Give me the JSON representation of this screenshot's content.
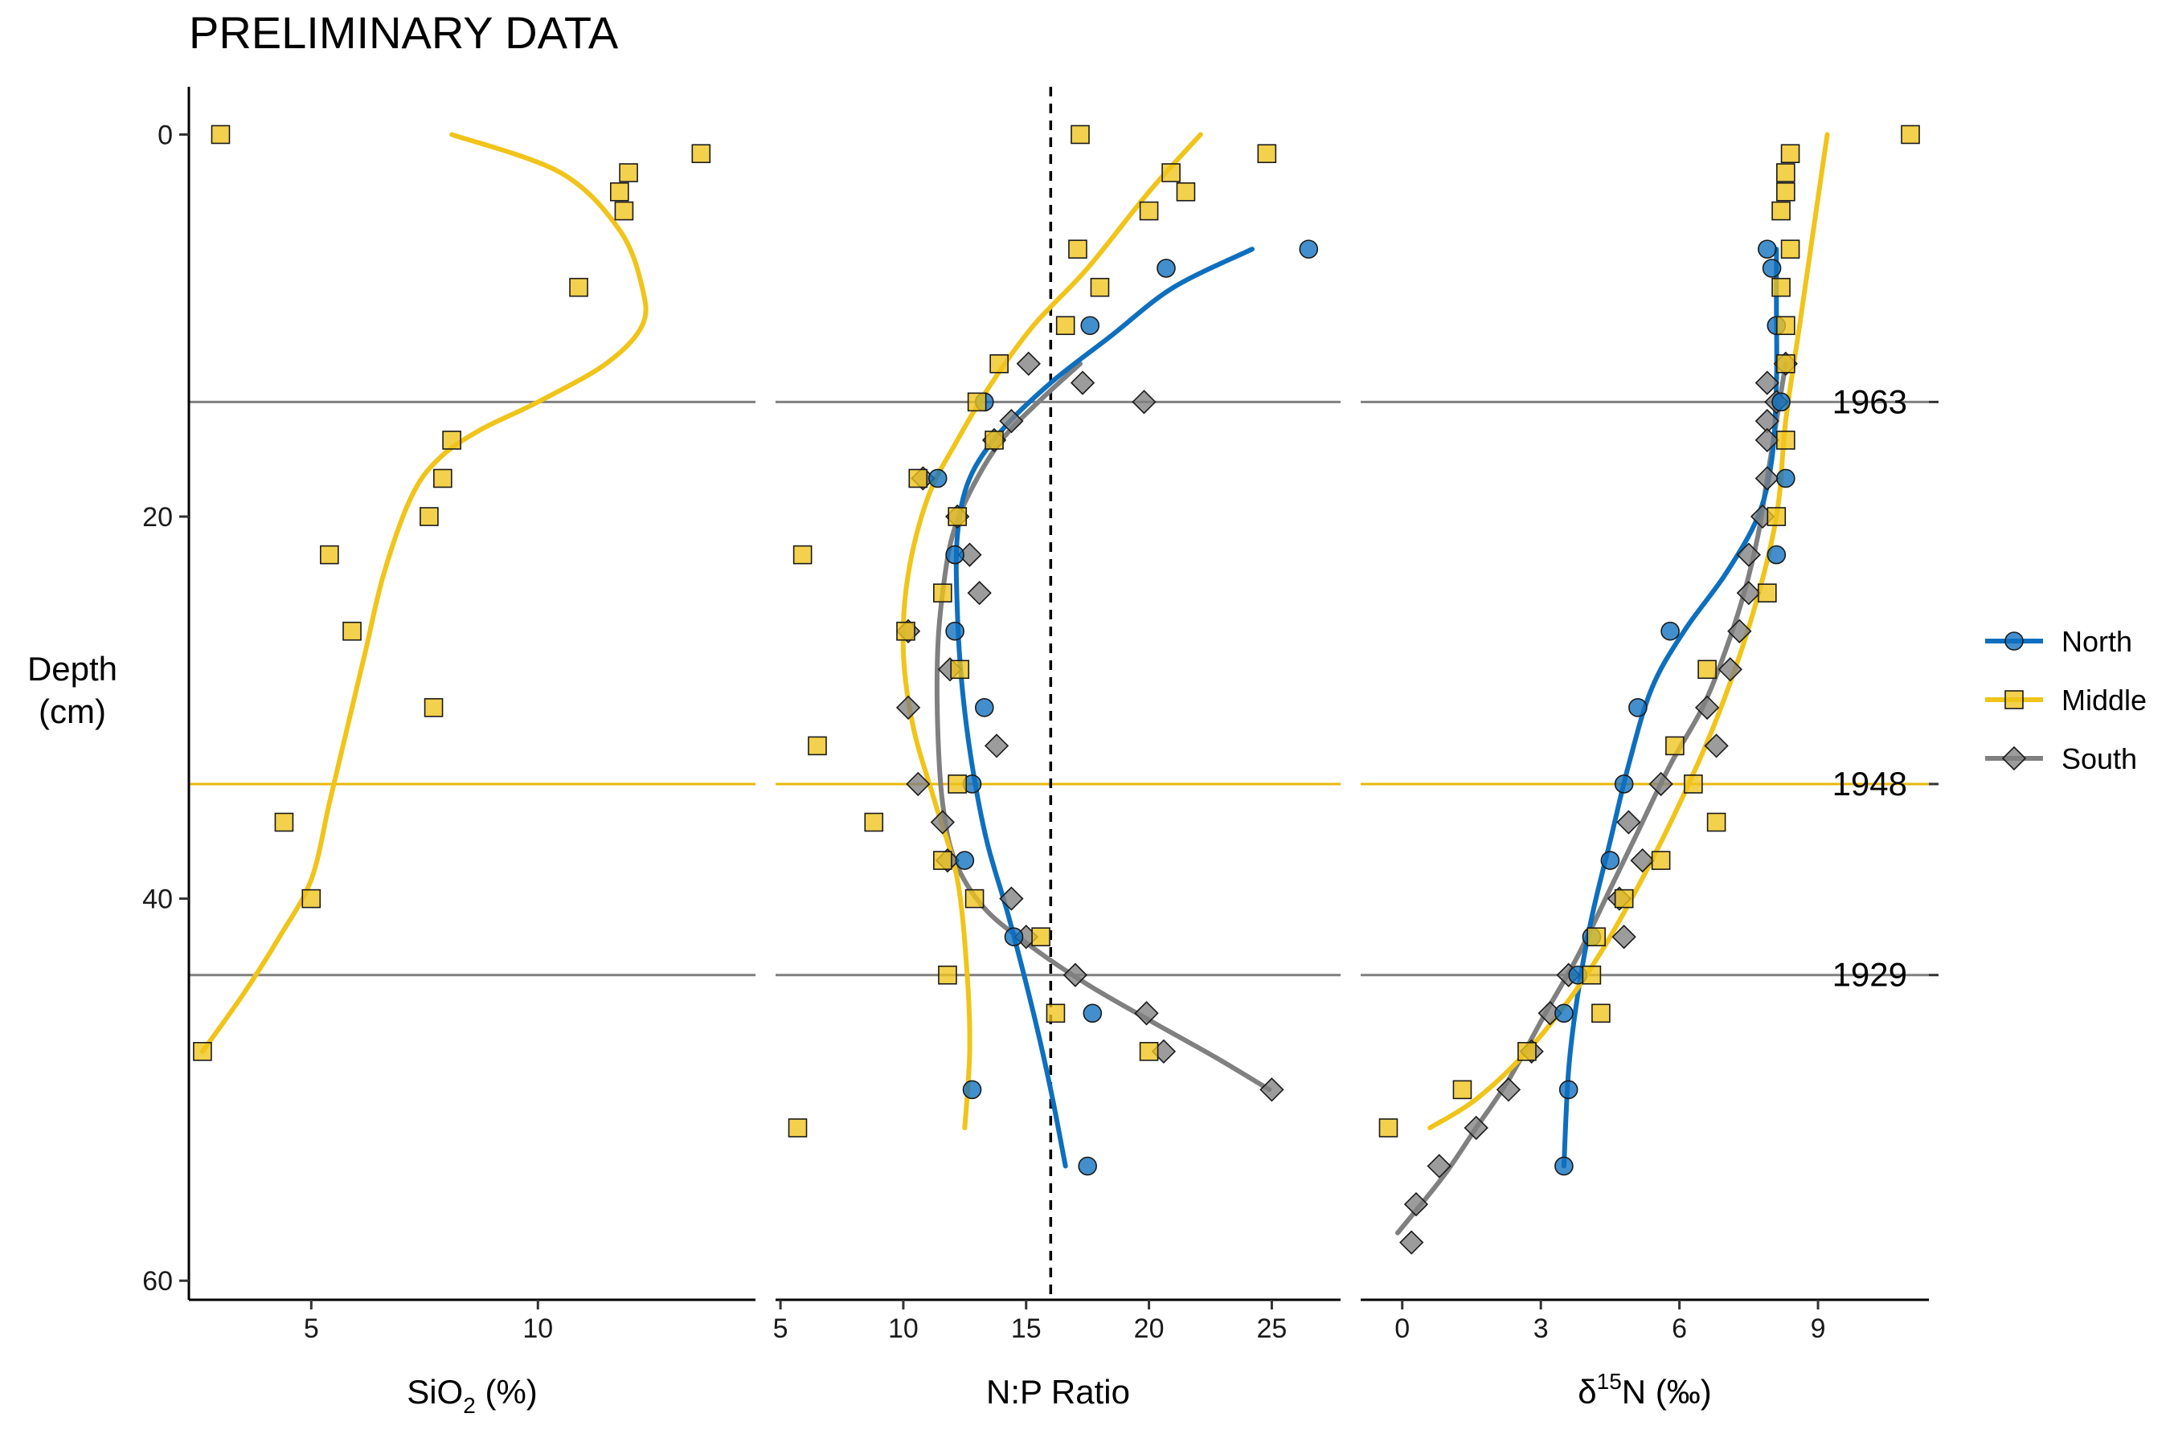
{
  "title": "PRELIMINARY DATA",
  "y_axis": {
    "label_line1": "Depth",
    "label_line2": "(cm)",
    "ticks": [
      0,
      20,
      40,
      60
    ],
    "range": [
      -2.5,
      61
    ]
  },
  "reference_lines": [
    {
      "depth": 14,
      "year": "1963",
      "color": "#808080"
    },
    {
      "depth": 34,
      "year": "1948",
      "color": "#E8B80A"
    },
    {
      "depth": 44,
      "year": "1929",
      "color": "#808080"
    }
  ],
  "legend": {
    "position": "right",
    "items": [
      {
        "name": "North",
        "color": "#0E6FBF",
        "shape": "circle"
      },
      {
        "name": "Middle",
        "color": "#F0C419",
        "shape": "square"
      },
      {
        "name": "South",
        "color": "#808080",
        "shape": "diamond"
      }
    ]
  },
  "chart_data": [
    {
      "type": "scatter",
      "panel": "SiO2",
      "xlabel_main": "SiO",
      "xlabel_sub": "2",
      "xlabel_tail": " (%)",
      "xlim": [
        2.3,
        14.8
      ],
      "xticks": [
        5,
        10
      ],
      "series": [
        {
          "name": "Middle",
          "points": [
            [
              3.0,
              0
            ],
            [
              13.6,
              1
            ],
            [
              12.0,
              2
            ],
            [
              11.8,
              3
            ],
            [
              11.9,
              4
            ],
            [
              10.9,
              8
            ],
            [
              8.1,
              16
            ],
            [
              7.9,
              18
            ],
            [
              7.6,
              20
            ],
            [
              5.4,
              22
            ],
            [
              5.9,
              26
            ],
            [
              7.7,
              30
            ],
            [
              4.4,
              36
            ],
            [
              5.0,
              40
            ],
            [
              2.6,
              48
            ]
          ],
          "smooth": [
            [
              8.1,
              0
            ],
            [
              10.5,
              2
            ],
            [
              11.8,
              5
            ],
            [
              12.3,
              8
            ],
            [
              12.3,
              10
            ],
            [
              11.5,
              12
            ],
            [
              10.0,
              14
            ],
            [
              8.7,
              15.5
            ],
            [
              7.8,
              17
            ],
            [
              7.2,
              19
            ],
            [
              6.6,
              23
            ],
            [
              6.2,
              27
            ],
            [
              5.8,
              31
            ],
            [
              5.4,
              35
            ],
            [
              5.0,
              39
            ],
            [
              4.3,
              42
            ],
            [
              3.5,
              45
            ],
            [
              2.6,
              48
            ]
          ]
        }
      ]
    },
    {
      "type": "scatter",
      "panel": "NP",
      "xlabel": "N:P Ratio",
      "xlim": [
        4.8,
        27.8
      ],
      "xticks": [
        5,
        10,
        15,
        20,
        25
      ],
      "reference_x": 16,
      "series": [
        {
          "name": "North",
          "points": [
            [
              26.5,
              6
            ],
            [
              20.7,
              7
            ],
            [
              17.6,
              10
            ],
            [
              13.3,
              14
            ],
            [
              11.4,
              18
            ],
            [
              12.1,
              22
            ],
            [
              12.1,
              26
            ],
            [
              13.3,
              30
            ],
            [
              12.8,
              34
            ],
            [
              12.5,
              38
            ],
            [
              14.5,
              42
            ],
            [
              17.7,
              46
            ],
            [
              12.8,
              50
            ],
            [
              17.5,
              54
            ]
          ],
          "smooth": [
            [
              24.2,
              6
            ],
            [
              21,
              8
            ],
            [
              18.5,
              10.5
            ],
            [
              16,
              13
            ],
            [
              14,
              15.5
            ],
            [
              12.7,
              18
            ],
            [
              12.2,
              21
            ],
            [
              12.2,
              25
            ],
            [
              12.4,
              29
            ],
            [
              12.8,
              33
            ],
            [
              13.4,
              37
            ],
            [
              14.3,
              41
            ],
            [
              15.3,
              46
            ],
            [
              16,
              50
            ],
            [
              16.6,
              54
            ]
          ]
        },
        {
          "name": "Middle",
          "points": [
            [
              17.2,
              0
            ],
            [
              24.8,
              1
            ],
            [
              20.9,
              2
            ],
            [
              21.5,
              3
            ],
            [
              20.0,
              4
            ],
            [
              17.1,
              6
            ],
            [
              18.0,
              8
            ],
            [
              16.6,
              10
            ],
            [
              13.9,
              12
            ],
            [
              13.0,
              14
            ],
            [
              13.7,
              16
            ],
            [
              10.6,
              18
            ],
            [
              12.2,
              20
            ],
            [
              5.9,
              22
            ],
            [
              11.6,
              24
            ],
            [
              10.1,
              26
            ],
            [
              12.3,
              28
            ],
            [
              6.5,
              32
            ],
            [
              12.2,
              34
            ],
            [
              8.8,
              36
            ],
            [
              11.6,
              38
            ],
            [
              12.9,
              40
            ],
            [
              15.6,
              42
            ],
            [
              11.8,
              44
            ],
            [
              16.2,
              46
            ],
            [
              20.0,
              48
            ],
            [
              5.7,
              52
            ]
          ],
          "smooth": [
            [
              22.1,
              0
            ],
            [
              20,
              3
            ],
            [
              17.5,
              7
            ],
            [
              15.3,
              10
            ],
            [
              13.6,
              13
            ],
            [
              12.2,
              16
            ],
            [
              11.0,
              19
            ],
            [
              10.2,
              23
            ],
            [
              10.0,
              27
            ],
            [
              10.4,
              31
            ],
            [
              11.3,
              35
            ],
            [
              12.2,
              39
            ],
            [
              12.6,
              44
            ],
            [
              12.7,
              48
            ],
            [
              12.5,
              52
            ]
          ]
        },
        {
          "name": "South",
          "points": [
            [
              15.1,
              12
            ],
            [
              17.3,
              13
            ],
            [
              19.8,
              14
            ],
            [
              14.4,
              15
            ],
            [
              13.7,
              16
            ],
            [
              10.8,
              18
            ],
            [
              12.2,
              20
            ],
            [
              12.7,
              22
            ],
            [
              13.1,
              24
            ],
            [
              10.2,
              26
            ],
            [
              11.9,
              28
            ],
            [
              10.2,
              30
            ],
            [
              13.8,
              32
            ],
            [
              10.6,
              34
            ],
            [
              11.6,
              36
            ],
            [
              11.8,
              38
            ],
            [
              14.4,
              40
            ],
            [
              15.0,
              42
            ],
            [
              17.0,
              44
            ],
            [
              19.9,
              46
            ],
            [
              20.6,
              48
            ],
            [
              25.0,
              50
            ]
          ],
          "smooth": [
            [
              17.2,
              12
            ],
            [
              15.5,
              14
            ],
            [
              14.0,
              16
            ],
            [
              12.8,
              18.5
            ],
            [
              12.0,
              21
            ],
            [
              11.6,
              24
            ],
            [
              11.4,
              27
            ],
            [
              11.4,
              31
            ],
            [
              11.6,
              35
            ],
            [
              12.1,
              38
            ],
            [
              13.3,
              40.5
            ],
            [
              15.2,
              42.5
            ],
            [
              17.5,
              44.5
            ],
            [
              20.2,
              46.5
            ],
            [
              22.7,
              48.3
            ],
            [
              24.9,
              50
            ]
          ]
        }
      ]
    },
    {
      "type": "scatter",
      "panel": "d15N",
      "xlabel_delta": "δ",
      "xlabel_sup": "15",
      "xlabel_tail": "N (‰)",
      "xlim": [
        -0.9,
        11.4
      ],
      "xticks": [
        0,
        3,
        6,
        9
      ],
      "series": [
        {
          "name": "North",
          "points": [
            [
              7.9,
              6
            ],
            [
              8.0,
              7
            ],
            [
              8.1,
              10
            ],
            [
              8.2,
              14
            ],
            [
              8.3,
              18
            ],
            [
              8.1,
              22
            ],
            [
              5.8,
              26
            ],
            [
              5.1,
              30
            ],
            [
              4.8,
              34
            ],
            [
              4.5,
              38
            ],
            [
              4.1,
              42
            ],
            [
              3.8,
              44
            ],
            [
              3.5,
              46
            ],
            [
              3.6,
              50
            ],
            [
              3.5,
              54
            ]
          ],
          "smooth": [
            [
              8.1,
              6
            ],
            [
              8.1,
              9
            ],
            [
              8.1,
              13
            ],
            [
              8.0,
              17
            ],
            [
              7.7,
              20
            ],
            [
              7.0,
              23
            ],
            [
              6.1,
              26
            ],
            [
              5.4,
              29
            ],
            [
              4.9,
              33
            ],
            [
              4.5,
              37
            ],
            [
              4.1,
              41
            ],
            [
              3.8,
              45
            ],
            [
              3.6,
              49
            ],
            [
              3.5,
              54
            ]
          ]
        },
        {
          "name": "Middle",
          "points": [
            [
              11.0,
              0
            ],
            [
              8.4,
              1
            ],
            [
              8.3,
              2
            ],
            [
              8.3,
              3
            ],
            [
              8.2,
              4
            ],
            [
              8.4,
              6
            ],
            [
              8.2,
              8
            ],
            [
              8.3,
              10
            ],
            [
              8.3,
              12
            ],
            [
              8.3,
              16
            ],
            [
              8.1,
              20
            ],
            [
              7.9,
              24
            ],
            [
              6.6,
              28
            ],
            [
              5.9,
              32
            ],
            [
              6.3,
              34
            ],
            [
              6.8,
              36
            ],
            [
              5.6,
              38
            ],
            [
              4.8,
              40
            ],
            [
              4.2,
              42
            ],
            [
              4.1,
              44
            ],
            [
              4.3,
              46
            ],
            [
              2.7,
              48
            ],
            [
              1.3,
              50
            ],
            [
              -0.3,
              52
            ]
          ],
          "smooth": [
            [
              9.2,
              0
            ],
            [
              8.9,
              5
            ],
            [
              8.6,
              10
            ],
            [
              8.3,
              15
            ],
            [
              8.1,
              20
            ],
            [
              7.6,
              25
            ],
            [
              6.9,
              30
            ],
            [
              6.2,
              34
            ],
            [
              5.4,
              38
            ],
            [
              4.5,
              42
            ],
            [
              3.7,
              45
            ],
            [
              2.7,
              48
            ],
            [
              1.6,
              50.5
            ],
            [
              0.6,
              52
            ]
          ]
        },
        {
          "name": "South",
          "points": [
            [
              8.3,
              12
            ],
            [
              7.9,
              13
            ],
            [
              8.1,
              14
            ],
            [
              7.9,
              15
            ],
            [
              7.9,
              16
            ],
            [
              7.9,
              18
            ],
            [
              7.8,
              20
            ],
            [
              7.5,
              22
            ],
            [
              7.5,
              24
            ],
            [
              7.3,
              26
            ],
            [
              7.1,
              28
            ],
            [
              6.6,
              30
            ],
            [
              6.8,
              32
            ],
            [
              5.6,
              34
            ],
            [
              4.9,
              36
            ],
            [
              5.2,
              38
            ],
            [
              4.7,
              40
            ],
            [
              4.8,
              42
            ],
            [
              3.6,
              44
            ],
            [
              3.2,
              46
            ],
            [
              2.8,
              48
            ],
            [
              2.3,
              50
            ],
            [
              1.6,
              52
            ],
            [
              0.8,
              54
            ],
            [
              0.3,
              56
            ],
            [
              0.2,
              58
            ]
          ],
          "smooth": [
            [
              8.3,
              12
            ],
            [
              8.1,
              15
            ],
            [
              7.9,
              18
            ],
            [
              7.7,
              21
            ],
            [
              7.4,
              24
            ],
            [
              7.0,
              27
            ],
            [
              6.5,
              30
            ],
            [
              5.8,
              33
            ],
            [
              5.1,
              36.5
            ],
            [
              4.5,
              39.5
            ],
            [
              3.8,
              43
            ],
            [
              3.1,
              46
            ],
            [
              2.3,
              49.5
            ],
            [
              1.6,
              52
            ],
            [
              0.9,
              54.5
            ],
            [
              -0.1,
              57.5
            ]
          ]
        }
      ]
    }
  ]
}
